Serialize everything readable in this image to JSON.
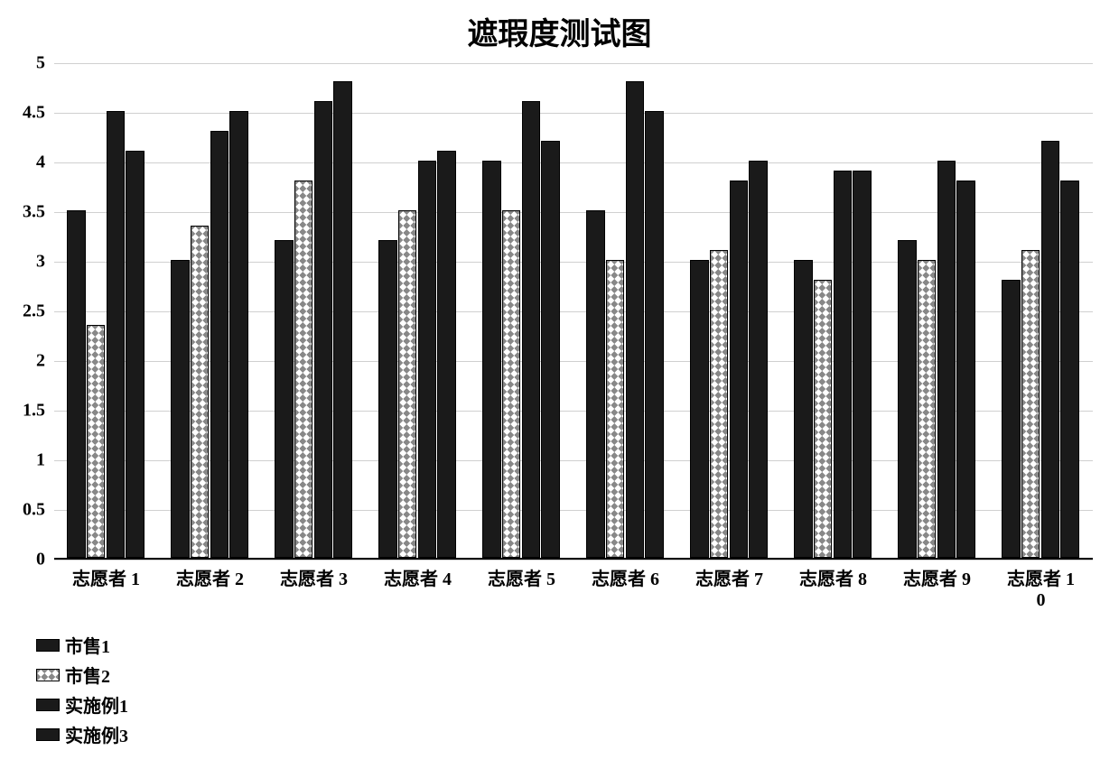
{
  "chart": {
    "type": "bar",
    "title": "遮瑕度测试图",
    "title_fontsize": 34,
    "label_fontsize": 20,
    "tick_fontsize": 20,
    "legend_fontsize": 20,
    "background_color": "#ffffff",
    "grid_color": "#d0d0d0",
    "axis_color": "#000000",
    "text_color": "#000000",
    "ylim": [
      0,
      5
    ],
    "ytick_step": 0.5,
    "yticks": [
      0,
      0.5,
      1,
      1.5,
      2,
      2.5,
      3,
      3.5,
      4,
      4.5,
      5
    ],
    "ytick_labels": [
      "0",
      "0.5",
      "1",
      "1.5",
      "2",
      "2.5",
      "3",
      "3.5",
      "4",
      "4.5",
      "5"
    ],
    "categories": [
      "志愿者 1",
      "志愿者 2",
      "志愿者 3",
      "志愿者 4",
      "志愿者 5",
      "志愿者 6",
      "志愿者 7",
      "志愿者 8",
      "志愿者 9",
      "志愿者 1\n0"
    ],
    "group_gap_ratio": 0.25,
    "bar_gap_ratio": 0.0,
    "series": [
      {
        "name": "市售1",
        "pattern": "solid-dark",
        "fill_color": "#1a1a1a",
        "border_color": "#000000",
        "values": [
          3.5,
          3.0,
          3.2,
          3.2,
          4.0,
          3.5,
          3.0,
          3.0,
          3.2,
          2.8
        ]
      },
      {
        "name": "市售2",
        "pattern": "cross",
        "fill_color": "#ffffff",
        "hatch_color": "#888888",
        "border_color": "#000000",
        "values": [
          2.35,
          3.35,
          3.8,
          3.5,
          3.5,
          3.0,
          3.1,
          2.8,
          3.0,
          3.1
        ]
      },
      {
        "name": "实施例1",
        "pattern": "solid-dark",
        "fill_color": "#1a1a1a",
        "border_color": "#000000",
        "values": [
          4.5,
          4.3,
          4.6,
          4.0,
          4.6,
          4.8,
          3.8,
          3.9,
          4.0,
          4.2
        ]
      },
      {
        "name": "实施例3",
        "pattern": "solid-dark",
        "fill_color": "#1a1a1a",
        "border_color": "#000000",
        "values": [
          4.1,
          4.5,
          4.8,
          4.1,
          4.2,
          4.5,
          4.0,
          3.9,
          3.8,
          3.8
        ]
      }
    ],
    "legend": {
      "position": "bottom-left",
      "items": [
        {
          "label": "市售1",
          "pattern": "solid-dark"
        },
        {
          "label": "市售2",
          "pattern": "cross"
        },
        {
          "label": "实施例1",
          "pattern": "solid-dark"
        },
        {
          "label": "实施例3",
          "pattern": "solid-dark"
        }
      ]
    }
  }
}
